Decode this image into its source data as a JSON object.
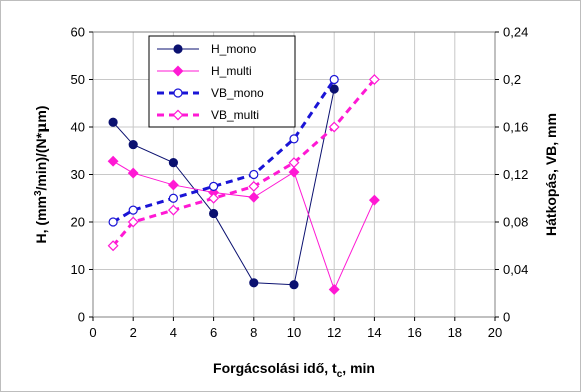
{
  "chart_data": {
    "type": "line",
    "xlabel": "Forgácsolási idő, t",
    "xlabel_sub": "c",
    "xlabel_suffix": ", min",
    "ylabel_left": {
      "prefix": "H, (mm",
      "sup": "3",
      "mid": "/min)/(N*",
      "mu": "μ",
      "suffix": "m)"
    },
    "ylabel_right": "Hátkopás, VB, mm",
    "xlim": [
      0,
      20
    ],
    "ylim_left": [
      0,
      60
    ],
    "ylim_right": [
      0,
      0.24
    ],
    "x_ticks": [
      "0",
      "2",
      "4",
      "6",
      "8",
      "10",
      "12",
      "14",
      "16",
      "18",
      "20"
    ],
    "y_left_ticks": [
      "0",
      "10",
      "20",
      "30",
      "40",
      "50",
      "60"
    ],
    "y_right_ticks": [
      "0",
      "0,04",
      "0,08",
      "0,12",
      "0,16",
      "0,2",
      "0,24"
    ],
    "grid": true,
    "legend_position": "top-center",
    "series": [
      {
        "name": "H_mono",
        "axis": "left",
        "color": "#0b1170",
        "line": "solid",
        "marker": "circle-filled",
        "x": [
          1,
          2,
          4,
          6,
          8,
          10,
          12
        ],
        "y": [
          41,
          36.3,
          32.5,
          21.8,
          7.2,
          6.8,
          48
        ]
      },
      {
        "name": "H_multi",
        "axis": "left",
        "color": "#ff19d4",
        "line": "solid",
        "marker": "diamond-filled",
        "x": [
          1,
          2,
          4,
          6,
          8,
          10,
          12,
          14
        ],
        "y": [
          32.8,
          30.3,
          27.8,
          26.2,
          25.2,
          30.5,
          5.8,
          24.6
        ]
      },
      {
        "name": "VB_mono",
        "axis": "right",
        "color": "#1a14d6",
        "line": "dashed",
        "marker": "circle-open",
        "x": [
          1,
          2,
          4,
          6,
          8,
          10,
          12
        ],
        "y": [
          0.08,
          0.09,
          0.1,
          0.11,
          0.12,
          0.15,
          0.2
        ]
      },
      {
        "name": "VB_multi",
        "axis": "right",
        "color": "#ff19d4",
        "line": "dashed",
        "marker": "diamond-open",
        "x": [
          1,
          2,
          4,
          6,
          8,
          10,
          12,
          14
        ],
        "y": [
          0.06,
          0.08,
          0.09,
          0.1,
          0.11,
          0.13,
          0.16,
          0.2
        ]
      }
    ]
  }
}
